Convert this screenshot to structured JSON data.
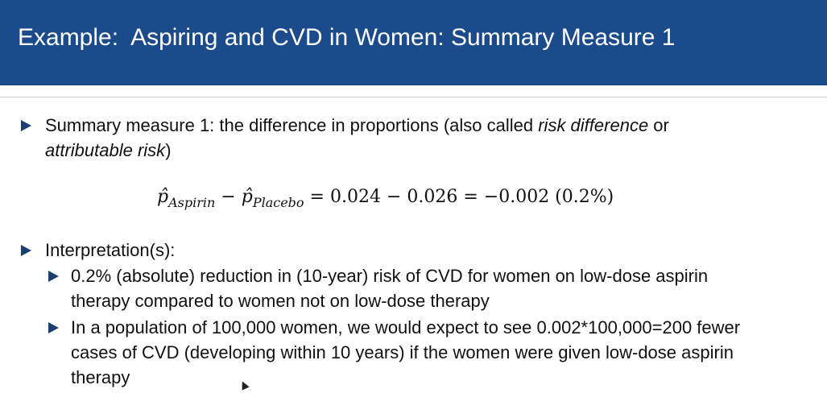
{
  "header": {
    "title": "Example:  Aspiring and CVD in Women: Summary Measure 1",
    "background": "#1c4b8b"
  },
  "bullets": {
    "level1_color": "#1c3f72"
  },
  "summary": {
    "line1_plain": "Summary measure 1: the difference in proportions (also called ",
    "line1_italic": "risk difference",
    "line1_end": " or",
    "line2_italic": "attributable risk",
    "line2_end": ")"
  },
  "formula": {
    "p1_symbol": "p̂",
    "p1_sub": "Aspirin",
    "minus1": " − ",
    "p2_symbol": "p̂",
    "p2_sub": "Placebo",
    "rest": " = 0.024 − 0.026 = −0.002 (0.2%)"
  },
  "interpretation": {
    "heading": "Interpretation(s):",
    "item1_line1": "0.2% (absolute) reduction in (10-year) risk of CVD for women on low-dose aspirin",
    "item1_line2": "therapy compared to women not on low-dose therapy",
    "item2_line1": "In a population of 100,000 women, we would expect to see 0.002*100,000=200 fewer",
    "item2_line2": "cases of CVD (developing within 10 years) if the women were given low-dose aspirin",
    "item2_line3": "therapy"
  }
}
